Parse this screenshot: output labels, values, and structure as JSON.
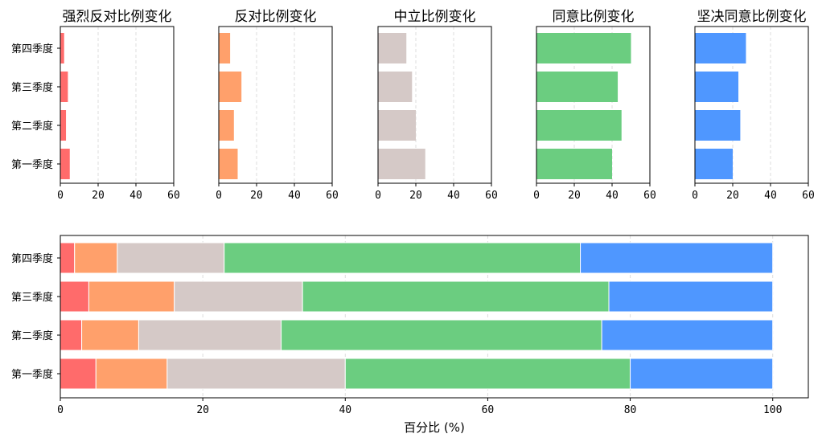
{
  "chart_data": [
    {
      "type": "bar",
      "orientation": "horizontal",
      "title": "强烈反对比例变化",
      "categories": [
        "第一季度",
        "第二季度",
        "第三季度",
        "第四季度"
      ],
      "values": [
        5,
        3,
        4,
        2
      ],
      "xlim": [
        0,
        60
      ],
      "xticks": [
        "0",
        "20",
        "40",
        "60"
      ],
      "color": "#ff6b6b",
      "grid": "x-dashed"
    },
    {
      "type": "bar",
      "orientation": "horizontal",
      "title": "反对比例变化",
      "categories": [
        "第一季度",
        "第二季度",
        "第三季度",
        "第四季度"
      ],
      "values": [
        10,
        8,
        12,
        6
      ],
      "xlim": [
        0,
        60
      ],
      "xticks": [
        "0",
        "20",
        "40",
        "60"
      ],
      "color": "#ffa06b",
      "grid": "x-dashed"
    },
    {
      "type": "bar",
      "orientation": "horizontal",
      "title": "中立比例变化",
      "categories": [
        "第一季度",
        "第二季度",
        "第三季度",
        "第四季度"
      ],
      "values": [
        25,
        20,
        18,
        15
      ],
      "xlim": [
        0,
        60
      ],
      "xticks": [
        "0",
        "20",
        "40",
        "60"
      ],
      "color": "#d5c9c7",
      "grid": "x-dashed"
    },
    {
      "type": "bar",
      "orientation": "horizontal",
      "title": "同意比例变化",
      "categories": [
        "第一季度",
        "第二季度",
        "第三季度",
        "第四季度"
      ],
      "values": [
        40,
        45,
        43,
        50
      ],
      "xlim": [
        0,
        60
      ],
      "xticks": [
        "0",
        "20",
        "40",
        "60"
      ],
      "color": "#6bcd80",
      "grid": "x-dashed"
    },
    {
      "type": "bar",
      "orientation": "horizontal",
      "title": "坚决同意比例变化",
      "categories": [
        "第一季度",
        "第二季度",
        "第三季度",
        "第四季度"
      ],
      "values": [
        20,
        24,
        23,
        27
      ],
      "xlim": [
        0,
        60
      ],
      "xticks": [
        "0",
        "20",
        "40",
        "60"
      ],
      "color": "#4f97ff",
      "grid": "x-dashed"
    },
    {
      "type": "bar",
      "orientation": "horizontal",
      "stacked": true,
      "title": "",
      "xlabel": "百分比 (%)",
      "categories": [
        "第一季度",
        "第二季度",
        "第三季度",
        "第四季度"
      ],
      "xlim": [
        0,
        105
      ],
      "xticks": [
        "0",
        "20",
        "40",
        "60",
        "80",
        "100"
      ],
      "grid": "x-dashed",
      "series": [
        {
          "values": [
            5,
            3,
            4,
            2
          ],
          "color": "#ff6b6b"
        },
        {
          "values": [
            10,
            8,
            12,
            6
          ],
          "color": "#ffa06b"
        },
        {
          "values": [
            25,
            20,
            18,
            15
          ],
          "color": "#d5c9c7"
        },
        {
          "values": [
            40,
            45,
            43,
            50
          ],
          "color": "#6bcd80"
        },
        {
          "values": [
            20,
            24,
            23,
            27
          ],
          "color": "#4f97ff"
        }
      ]
    }
  ]
}
